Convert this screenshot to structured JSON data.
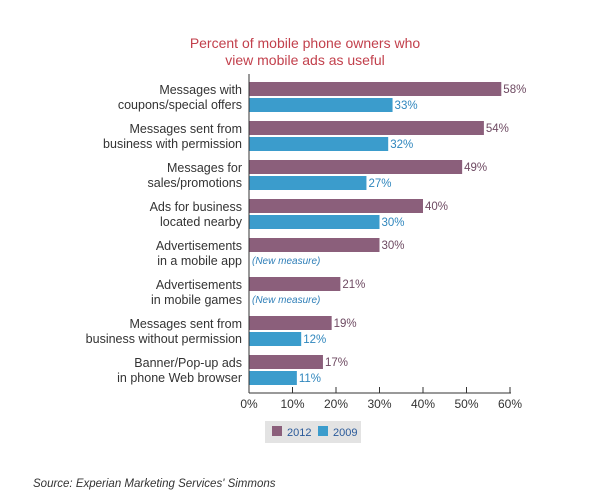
{
  "chart_data": {
    "type": "bar",
    "orientation": "horizontal",
    "title": [
      "Percent of mobile phone owners who",
      "view mobile ads as useful"
    ],
    "categories": [
      [
        "Messages with",
        "coupons/special offers"
      ],
      [
        "Messages sent from",
        "business with permission"
      ],
      [
        "Messages for",
        "sales/promotions"
      ],
      [
        "Ads for business",
        "located nearby"
      ],
      [
        "Advertisements",
        "in a mobile app"
      ],
      [
        "Advertisements",
        "in mobile games"
      ],
      [
        "Messages sent from",
        "business without permission"
      ],
      [
        "Banner/Pop-up ads",
        "in phone Web browser"
      ]
    ],
    "series": [
      {
        "name": "2012",
        "color": "#8b5f7b",
        "values": [
          58,
          54,
          49,
          40,
          30,
          21,
          19,
          17
        ]
      },
      {
        "name": "2009",
        "color": "#3b9ccc",
        "values": [
          33,
          32,
          27,
          30,
          null,
          null,
          12,
          11
        ]
      }
    ],
    "missing_label": "(New measure)",
    "xlim": [
      0,
      60
    ],
    "xticks": [
      "0%",
      "10%",
      "20%",
      "30%",
      "40%",
      "50%",
      "60%"
    ],
    "xlabel": "",
    "ylabel": "",
    "legend": "bottom",
    "grid": false
  },
  "source": "Source: Experian Marketing Services' Simmons"
}
